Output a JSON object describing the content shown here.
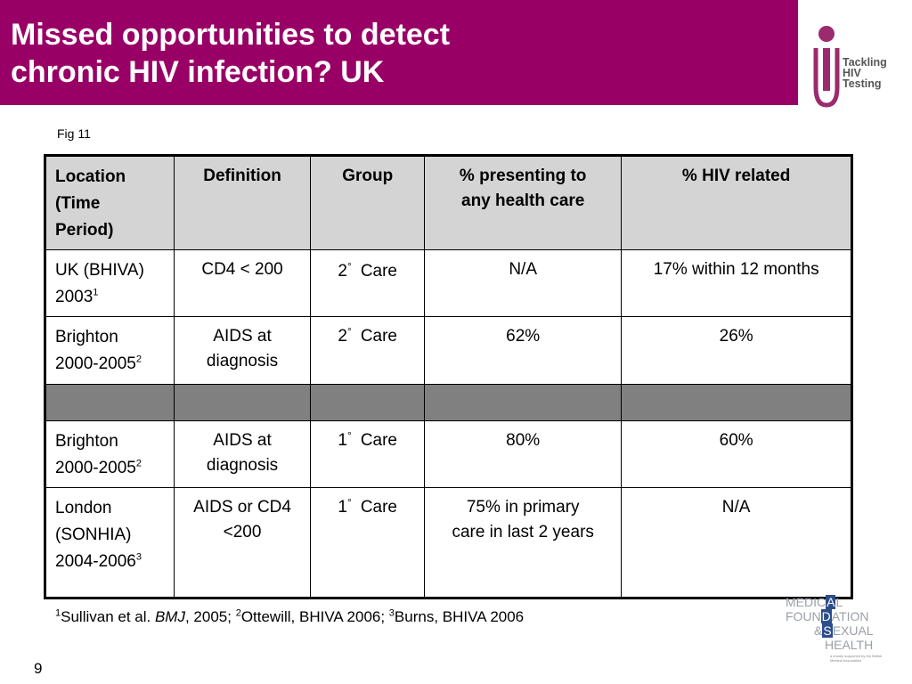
{
  "title": {
    "line1": "Missed opportunities to detect",
    "line2": "chronic HIV infection? UK"
  },
  "logo_top": {
    "line1": "Tackling",
    "line2": "HIV",
    "line3": "Testing"
  },
  "fig_label": "Fig 11",
  "table": {
    "headers": {
      "location": [
        "Location",
        "(Time",
        "Period)"
      ],
      "definition": "Definition",
      "group": "Group",
      "presenting": [
        "% presenting to",
        "any health care"
      ],
      "hiv_related": "% HIV related"
    },
    "rows": [
      {
        "location": [
          "UK (BHIVA)",
          "2003"
        ],
        "sup": "1",
        "definition": [
          "CD4 < 200"
        ],
        "group_num": "2",
        "group_deg": "°",
        "group_label": "Care",
        "presenting": [
          "N/A"
        ],
        "hiv_related": "17% within 12 months"
      },
      {
        "location": [
          "Brighton",
          "2000-2005"
        ],
        "sup": "2",
        "definition": [
          "AIDS at",
          "diagnosis"
        ],
        "group_num": "2",
        "group_deg": "°",
        "group_label": "Care",
        "presenting": [
          "62%"
        ],
        "hiv_related": "26%"
      },
      {
        "location": [
          "Brighton",
          "2000-2005"
        ],
        "sup": "2",
        "definition": [
          "AIDS at",
          "diagnosis"
        ],
        "group_num": "1",
        "group_deg": "°",
        "group_label": "Care",
        "presenting": [
          "80%"
        ],
        "hiv_related": "60%"
      },
      {
        "location": [
          "London",
          "(SONHIA)",
          "2004-2006"
        ],
        "sup": "3",
        "definition": [
          "AIDS or CD4",
          "<200"
        ],
        "group_num": "1",
        "group_deg": "°",
        "group_label": "Care",
        "presenting": [
          "75% in primary",
          "care in last 2 years"
        ],
        "hiv_related": "N/A"
      }
    ]
  },
  "footnote": {
    "sup1": "1",
    "part1": "Sullivan et al. ",
    "journal": "BMJ",
    "part2": ", 2005; ",
    "sup2": "2",
    "part3": "Ottewill, BHIVA 2006; ",
    "sup3": "3",
    "part4": "Burns, BHIVA 2006"
  },
  "page_number": "9",
  "logo_bottom": {
    "line1a": "MEDIC",
    "line1b": "A",
    "line1c": "L",
    "line2a": "FOUN",
    "line2b": "D",
    "line2c": "ATION",
    "line3a": "&",
    "line3b": "S",
    "line3c": "EXUAL",
    "line4a": "HEALTH",
    "small": "a charity supported by the British Medical Association"
  },
  "colors": {
    "title_bar": "#990066",
    "header_bg": "#d4d4d4",
    "separator_bg": "#808080",
    "logo_accent": "#9b2a6e"
  }
}
